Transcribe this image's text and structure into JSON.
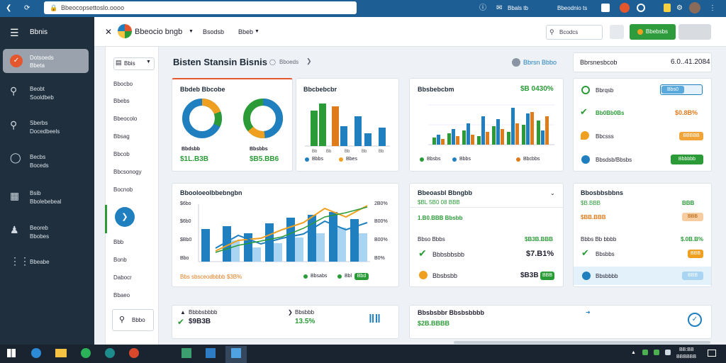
{
  "browser": {
    "url": "Bbeocopsettoslo.oooo",
    "right_items": [
      "Bbals tb",
      "Bbeodnio ts"
    ]
  },
  "sidebar": {
    "title": "Bbnis",
    "items": [
      {
        "icon": "mail-icon",
        "label1": "Dotsoeds",
        "label2": "Bbeta"
      },
      {
        "icon": "search-icon",
        "label1": "Beobt",
        "label2": "Sooldbeb"
      },
      {
        "icon": "shield-icon",
        "label1": "Sberbs",
        "label2": "Docedbeels"
      },
      {
        "icon": "shield-icon",
        "label1": "Becbs",
        "label2": "Boceds"
      },
      {
        "icon": "grid-icon",
        "label1": "Bsib",
        "label2": "Bbolebebeal"
      },
      {
        "icon": "user-icon",
        "label1": "Beoreb",
        "label2": "Bbobes"
      },
      {
        "icon": "apps-icon",
        "label1": "Bbeabe",
        "label2": ""
      }
    ]
  },
  "header": {
    "brand": "Bbeocio bngb",
    "nav": [
      "Bsodsb",
      "Bbeb"
    ],
    "search_placeholder": "Bcodcs",
    "primary_button": "Bbebsbs"
  },
  "pane": {
    "head": "Bbis",
    "items": [
      "Bbocbo",
      "Bbebs",
      "Bbeocolo",
      "Bbsag",
      "Bbcob",
      "Bbcsonogy",
      "Bocnob",
      "Bbb",
      "Bonb",
      "Dabocr",
      "Bbaeo"
    ],
    "bottom_button": "Bbbo"
  },
  "page": {
    "title": "Bisten Stansin Bisnis",
    "subtitle": "Bboeds",
    "link": "Bbrsn Bbbo",
    "summary_label": "Bbrsnesbcob",
    "summary_value": "6.0..41.2084"
  },
  "cards": {
    "donut": {
      "title": "Bbdeb Bbcobe",
      "labels": [
        "Bbdsbb",
        "Bbsbbs"
      ],
      "values": [
        "$1L.B3B",
        "$B5.BB6"
      ]
    },
    "bars": {
      "title": "Bbcbebcbr",
      "x": [
        "Bb",
        "Bb",
        "Bb",
        "Bb",
        "Bb"
      ],
      "legend": [
        "Bbbs",
        "Bbes"
      ]
    },
    "grouped": {
      "title": "Bbsbebcbm",
      "value": "$B 0430%",
      "x": [
        "Bbb",
        "Bb",
        "Bb",
        "Bb",
        "Bb",
        "Bb",
        "Bbs",
        "Bbb"
      ],
      "legend": [
        "Bbsbs",
        "Bbbs",
        "Bbcbbs"
      ]
    },
    "status": {
      "rows": [
        {
          "label": "Bbrqsb",
          "badge": "Bbs0"
        },
        {
          "label": "Bb0Bb0Bs",
          "badge": "$0.8B%"
        },
        {
          "label": "Bbcsss",
          "badge": "BBBBB"
        },
        {
          "label": "Bbsdsb/Bbsbs",
          "badge": "Bbbbbb"
        }
      ]
    },
    "combo": {
      "title": "Bbooloeolbbebngbn",
      "yleft": [
        "$6bo",
        "$6b0",
        "$Bb0",
        "Bbo"
      ],
      "yright": [
        "2B0%",
        "B00%",
        "B00%",
        "B0%"
      ],
      "x": [
        "Bb",
        "Bb",
        "Bb",
        "Bbb",
        "Bb",
        "Bbb",
        "Bbb",
        "Bbs"
      ],
      "footer": "Bbs sbsceodbbbb $3B%",
      "legend": [
        "Bbsabs",
        "Bbl"
      ],
      "badge": "Bbd"
    },
    "financial": {
      "title": "Bbeoasbl Bbngbb",
      "line1": "$BL 5B0 08 BBB",
      "line2": "1.B0.BBB Bbsbb",
      "rows": [
        {
          "label": "Bbso Bbbs",
          "value": "$B3B.BBB"
        },
        {
          "label": "Bbbsbbsbb",
          "value": "$7.B1%"
        },
        {
          "label": "Bbsbsbb",
          "value": "$B3B"
        }
      ],
      "pill": "BBB"
    },
    "metrics": {
      "title": "Bbosbbsbbns",
      "rows": [
        {
          "label": "$B.BBB",
          "badge": "BBB"
        },
        {
          "label": "$BB.BBB",
          "badge": "BBB"
        },
        {
          "label": "Bbbs Bb bbbb",
          "value": "$.0B.B%"
        },
        {
          "label": "Bbsbbs",
          "badge": "BBB"
        },
        {
          "label": "Bbsbbbb",
          "badge": "BBB"
        }
      ]
    },
    "bottom": {
      "a_title": "Bbbbsbbbb",
      "a_value": "$9B3B",
      "b_title": "Bbsbbb",
      "b_value": "13.5%",
      "c_title": "Bbsbsbbr Bbsbsbbbb",
      "c_value": "$2B.BBBB"
    }
  },
  "taskbar": {
    "time": "BB:BB",
    "date": "BBBBBB"
  },
  "colors": {
    "accent": "#1d5e95",
    "green": "#2a9b37",
    "orange": "#e07b1b",
    "blue": "#1f7fbf"
  }
}
